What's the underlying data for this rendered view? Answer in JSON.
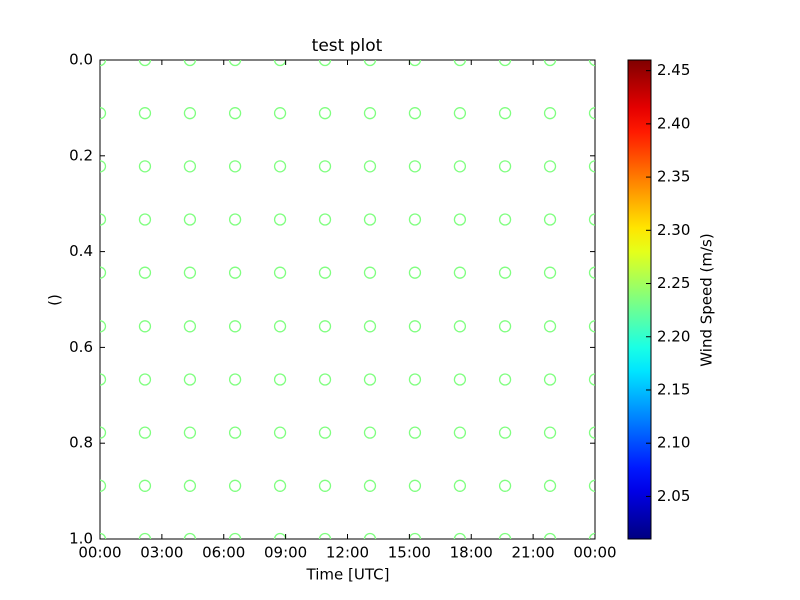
{
  "chart_data": {
    "type": "scatter",
    "title": "test plot",
    "x_label": "Time [UTC]",
    "y_label": "()",
    "colorbar_label": "Wind Speed (m/s)",
    "colormap": "jet",
    "marker": "circle-open",
    "xlim": [
      0,
      24
    ],
    "xticks": [
      {
        "value": 0,
        "label": "00:00"
      },
      {
        "value": 3,
        "label": "03:00"
      },
      {
        "value": 6,
        "label": "06:00"
      },
      {
        "value": 9,
        "label": "09:00"
      },
      {
        "value": 12,
        "label": "12:00"
      },
      {
        "value": 15,
        "label": "15:00"
      },
      {
        "value": 18,
        "label": "18:00"
      },
      {
        "value": 21,
        "label": "21:00"
      },
      {
        "value": 24,
        "label": "00:00"
      }
    ],
    "ylim": [
      1,
      0
    ],
    "y_inverted": true,
    "yticks": [
      {
        "value": 0,
        "label": "0.0"
      },
      0.2,
      0.4,
      0.6,
      0.8,
      {
        "value": 1,
        "label": "1.0"
      }
    ],
    "clim": [
      2.01,
      2.46
    ],
    "cticks": [
      2.05,
      {
        "value": 2.1,
        "label": "2.10"
      },
      2.15,
      {
        "value": 2.2,
        "label": "2.20"
      },
      2.25,
      {
        "value": 2.3,
        "label": "2.30"
      },
      2.35,
      {
        "value": 2.4,
        "label": "2.40"
      },
      2.45
    ],
    "x": [
      0,
      2.18,
      4.36,
      6.55,
      8.73,
      10.91,
      13.09,
      15.27,
      17.45,
      19.64,
      21.82,
      24,
      0,
      2.18,
      4.36,
      6.55,
      8.73,
      10.91,
      13.09,
      15.27,
      17.45,
      19.64,
      21.82,
      24,
      0,
      2.18,
      4.36,
      6.55,
      8.73,
      10.91,
      13.09,
      15.27,
      17.45,
      19.64,
      21.82,
      24,
      0,
      2.18,
      4.36,
      6.55,
      8.73,
      10.91,
      13.09,
      15.27,
      17.45,
      19.64,
      21.82,
      24,
      0,
      2.18,
      4.36,
      6.55,
      8.73,
      10.91,
      13.09,
      15.27,
      17.45,
      19.64,
      21.82,
      24,
      0,
      2.18,
      4.36,
      6.55,
      8.73,
      10.91,
      13.09,
      15.27,
      17.45,
      19.64,
      21.82,
      24,
      0,
      2.18,
      4.36,
      6.55,
      8.73,
      10.91,
      13.09,
      15.27,
      17.45,
      19.64,
      21.82,
      24,
      0,
      2.18,
      4.36,
      6.55,
      8.73,
      10.91,
      13.09,
      15.27,
      17.45,
      19.64,
      21.82,
      24,
      0,
      2.18,
      4.36,
      6.55,
      8.73,
      10.91,
      13.09,
      15.27,
      17.45,
      19.64,
      21.82,
      24,
      0,
      2.18,
      4.36,
      6.55,
      8.73,
      10.91,
      13.09,
      15.27,
      17.45,
      19.64,
      21.82,
      24
    ],
    "y": [
      0,
      0,
      0,
      0,
      0,
      0,
      0,
      0,
      0,
      0,
      0,
      0,
      0.111,
      0.111,
      0.111,
      0.111,
      0.111,
      0.111,
      0.111,
      0.111,
      0.111,
      0.111,
      0.111,
      0.111,
      0.222,
      0.222,
      0.222,
      0.222,
      0.222,
      0.222,
      0.222,
      0.222,
      0.222,
      0.222,
      0.222,
      0.222,
      0.333,
      0.333,
      0.333,
      0.333,
      0.333,
      0.333,
      0.333,
      0.333,
      0.333,
      0.333,
      0.333,
      0.333,
      0.444,
      0.444,
      0.444,
      0.444,
      0.444,
      0.444,
      0.444,
      0.444,
      0.444,
      0.444,
      0.444,
      0.444,
      0.556,
      0.556,
      0.556,
      0.556,
      0.556,
      0.556,
      0.556,
      0.556,
      0.556,
      0.556,
      0.556,
      0.556,
      0.667,
      0.667,
      0.667,
      0.667,
      0.667,
      0.667,
      0.667,
      0.667,
      0.667,
      0.667,
      0.667,
      0.667,
      0.778,
      0.778,
      0.778,
      0.778,
      0.778,
      0.778,
      0.778,
      0.778,
      0.778,
      0.778,
      0.778,
      0.778,
      0.889,
      0.889,
      0.889,
      0.889,
      0.889,
      0.889,
      0.889,
      0.889,
      0.889,
      0.889,
      0.889,
      0.889,
      1,
      1,
      1,
      1,
      1,
      1,
      1,
      1,
      1,
      1,
      1,
      1
    ],
    "values": [
      2.235,
      2.235,
      2.235,
      2.235,
      2.235,
      2.235,
      2.235,
      2.235,
      2.235,
      2.235,
      2.235,
      2.235,
      2.235,
      2.235,
      2.235,
      2.235,
      2.235,
      2.235,
      2.235,
      2.235,
      2.235,
      2.235,
      2.235,
      2.235,
      2.235,
      2.235,
      2.235,
      2.235,
      2.235,
      2.235,
      2.235,
      2.235,
      2.235,
      2.235,
      2.235,
      2.235,
      2.235,
      2.235,
      2.235,
      2.235,
      2.235,
      2.235,
      2.235,
      2.235,
      2.235,
      2.235,
      2.235,
      2.235,
      2.235,
      2.235,
      2.235,
      2.235,
      2.235,
      2.235,
      2.235,
      2.235,
      2.235,
      2.235,
      2.235,
      2.235,
      2.235,
      2.235,
      2.235,
      2.235,
      2.235,
      2.235,
      2.235,
      2.235,
      2.235,
      2.235,
      2.235,
      2.235,
      2.235,
      2.235,
      2.235,
      2.235,
      2.235,
      2.235,
      2.235,
      2.235,
      2.235,
      2.235,
      2.235,
      2.235,
      2.235,
      2.235,
      2.235,
      2.235,
      2.235,
      2.235,
      2.235,
      2.235,
      2.235,
      2.235,
      2.235,
      2.235,
      2.235,
      2.235,
      2.235,
      2.235,
      2.235,
      2.235,
      2.235,
      2.235,
      2.235,
      2.235,
      2.235,
      2.235,
      2.235,
      2.235,
      2.235,
      2.235,
      2.235,
      2.235,
      2.235,
      2.235,
      2.235,
      2.235,
      2.235,
      2.235
    ]
  }
}
